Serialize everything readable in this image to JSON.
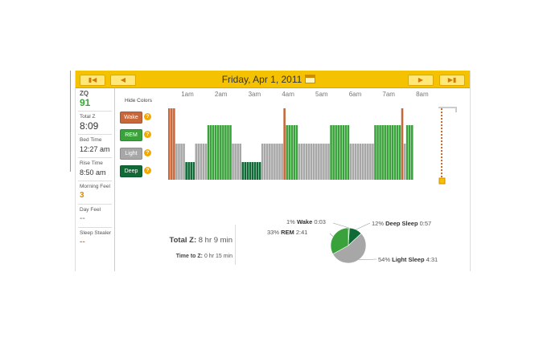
{
  "header": {
    "date": "Friday, Apr 1, 2011",
    "colors": {
      "bar": "#f4c200",
      "button": "#ffe77a"
    }
  },
  "sidebar": [
    {
      "label": "ZQ",
      "value": "91",
      "style": "green"
    },
    {
      "label": "Total Z",
      "value": "8:09",
      "style": "plain"
    },
    {
      "label": "Bed Time",
      "value": "12:27 am",
      "style": "plain"
    },
    {
      "label": "Rise Time",
      "value": "8:50 am",
      "style": "plain"
    },
    {
      "label": "Morning Feel",
      "value": "3",
      "style": "orange"
    },
    {
      "label": "Day Feel",
      "value": "--",
      "style": "plain"
    },
    {
      "label": "Sleep Stealer",
      "value": "--",
      "style": "orange"
    }
  ],
  "legend": {
    "hide_label": "Hide Colors",
    "items": [
      {
        "label": "Wake",
        "color": "#c8673a"
      },
      {
        "label": "REM",
        "color": "#3aa23a"
      },
      {
        "label": "Light",
        "color": "#a7a7a7"
      },
      {
        "label": "Deep",
        "color": "#0f6a36"
      }
    ]
  },
  "chart_data": [
    {
      "type": "bar",
      "x_ticks": [
        "1am",
        "2am",
        "3am",
        "4am",
        "5am",
        "6am",
        "7am",
        "8am"
      ],
      "stage_levels": {
        "Wake": 4,
        "REM": 3,
        "Light": 2,
        "Deep": 1
      },
      "segments": [
        {
          "stage": "Wake",
          "bars": 3
        },
        {
          "stage": "Light",
          "bars": 4
        },
        {
          "stage": "Deep",
          "bars": 4
        },
        {
          "stage": "Light",
          "bars": 5
        },
        {
          "stage": "REM",
          "bars": 10
        },
        {
          "stage": "Light",
          "bars": 4
        },
        {
          "stage": "Deep",
          "bars": 8
        },
        {
          "stage": "Light",
          "bars": 9
        },
        {
          "stage": "Wake",
          "bars": 1
        },
        {
          "stage": "REM",
          "bars": 5
        },
        {
          "stage": "Light",
          "bars": 13
        },
        {
          "stage": "REM",
          "bars": 8
        },
        {
          "stage": "Light",
          "bars": 10
        },
        {
          "stage": "REM",
          "bars": 11
        },
        {
          "stage": "Wake",
          "bars": 1
        },
        {
          "stage": "Light",
          "bars": 1
        },
        {
          "stage": "REM",
          "bars": 1
        },
        {
          "stage": "REM",
          "bars": 2
        }
      ]
    },
    {
      "type": "pie",
      "slices": [
        {
          "name": "Wake",
          "percent": 1,
          "time": "0:03",
          "color": "#c8673a"
        },
        {
          "name": "Deep Sleep",
          "percent": 12,
          "time": "0:57",
          "color": "#0f6a36"
        },
        {
          "name": "Light Sleep",
          "percent": 54,
          "time": "4:31",
          "color": "#a7a7a7"
        },
        {
          "name": "REM",
          "percent": 33,
          "time": "2:41",
          "color": "#3aa23a"
        }
      ]
    }
  ],
  "totals": {
    "total_label": "Total Z:",
    "total_value": "8 hr 9 min",
    "time_to_z_label": "Time to Z:",
    "time_to_z_value": "0 hr 15 min"
  }
}
